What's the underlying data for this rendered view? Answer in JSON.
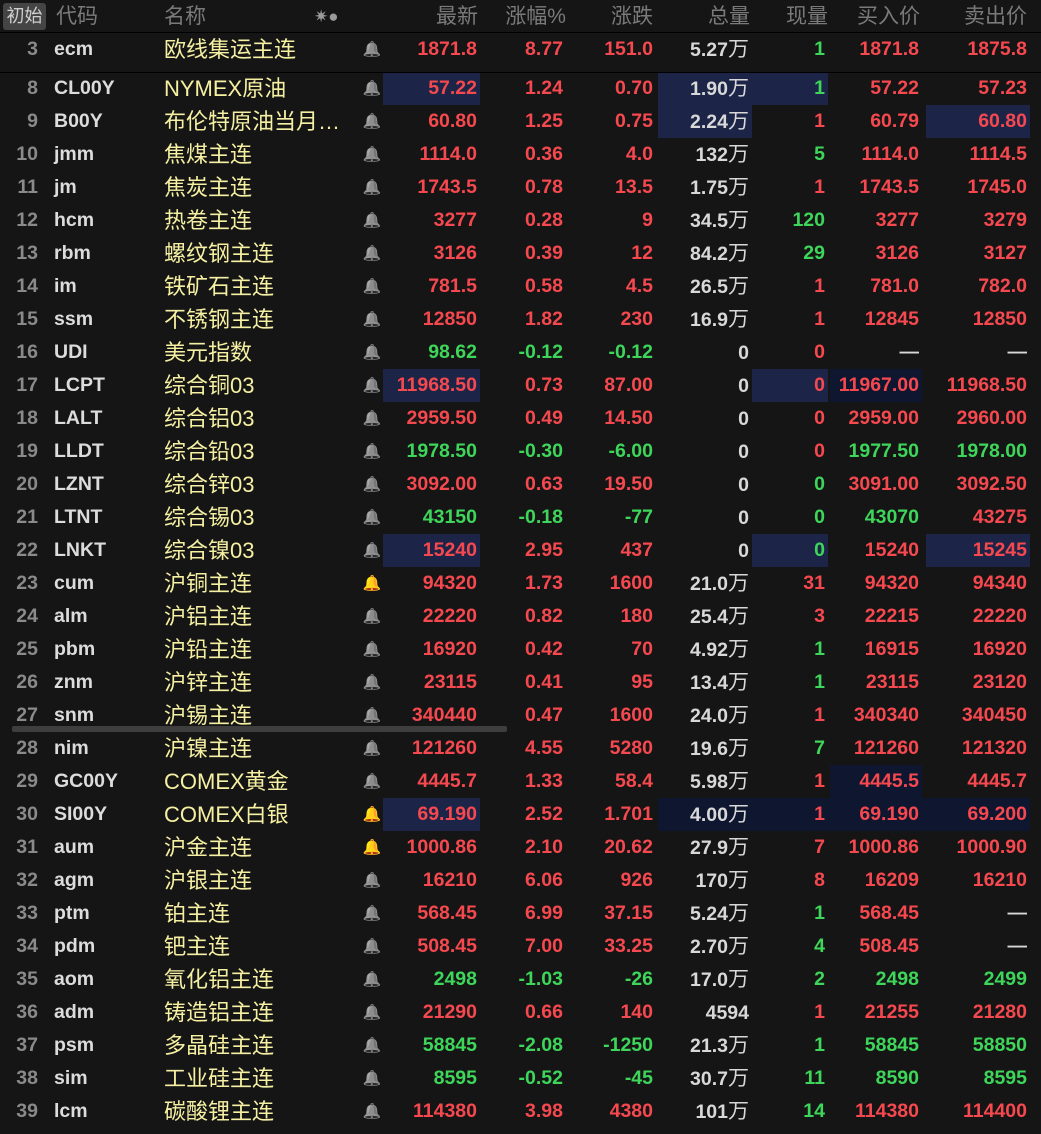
{
  "header": {
    "reset_button": "初始",
    "columns": {
      "code": "代码",
      "name": "名称",
      "icons": "✷●",
      "latest": "最新",
      "pct": "涨幅%",
      "change": "涨跌",
      "volume": "总量",
      "current_volume": "现量",
      "bid": "买入价",
      "ask": "卖出价"
    }
  },
  "colors": {
    "up": "#f5484f",
    "down": "#3ed65a",
    "neutral": "#d8d8d8",
    "name": "#f5f0a2",
    "highlight": "#1c2547",
    "highlight_dark": "#0f1630",
    "bell_gray": "#8a8a8a",
    "bell_orange": "#ff5a1f"
  },
  "rows": [
    {
      "n": "3",
      "code": "ecm",
      "name": "欧线集运主连",
      "bell": "gray",
      "latest": "1871.8",
      "pct": "8.77",
      "chg": "151.0",
      "vol": "5.27",
      "vol_unit": "万",
      "cur": "1",
      "bid": "1871.8",
      "ask": "1875.8",
      "colors": "rrrwgrr",
      "hl": []
    },
    {
      "n": "8",
      "code": "CL00Y",
      "name": "NYMEX原油",
      "bell": "gray",
      "latest": "57.22",
      "pct": "1.24",
      "chg": "0.70",
      "vol": "1.90",
      "vol_unit": "万",
      "cur": "1",
      "bid": "57.22",
      "ask": "57.23",
      "colors": "rrrwgrr",
      "hl": [
        "latest",
        "vol",
        "cur"
      ]
    },
    {
      "n": "9",
      "code": "B00Y",
      "name": "布伦特原油当月…",
      "bell": "gray",
      "latest": "60.80",
      "pct": "1.25",
      "chg": "0.75",
      "vol": "2.24",
      "vol_unit": "万",
      "cur": "1",
      "bid": "60.79",
      "ask": "60.80",
      "colors": "rrrwrrr",
      "hl": [
        "vol",
        "ask"
      ]
    },
    {
      "n": "10",
      "code": "jmm",
      "name": "焦煤主连",
      "bell": "gray",
      "latest": "1114.0",
      "pct": "0.36",
      "chg": "4.0",
      "vol": "132",
      "vol_unit": "万",
      "cur": "5",
      "bid": "1114.0",
      "ask": "1114.5",
      "colors": "rrrwgrr",
      "hl": []
    },
    {
      "n": "11",
      "code": "jm",
      "name": "焦炭主连",
      "bell": "gray",
      "latest": "1743.5",
      "pct": "0.78",
      "chg": "13.5",
      "vol": "1.75",
      "vol_unit": "万",
      "cur": "1",
      "bid": "1743.5",
      "ask": "1745.0",
      "colors": "rrrwrrr",
      "hl": []
    },
    {
      "n": "12",
      "code": "hcm",
      "name": "热卷主连",
      "bell": "gray",
      "latest": "3277",
      "pct": "0.28",
      "chg": "9",
      "vol": "34.5",
      "vol_unit": "万",
      "cur": "120",
      "bid": "3277",
      "ask": "3279",
      "colors": "rrrwgrr",
      "hl": []
    },
    {
      "n": "13",
      "code": "rbm",
      "name": "螺纹钢主连",
      "bell": "gray",
      "latest": "3126",
      "pct": "0.39",
      "chg": "12",
      "vol": "84.2",
      "vol_unit": "万",
      "cur": "29",
      "bid": "3126",
      "ask": "3127",
      "colors": "rrrwgrr",
      "hl": []
    },
    {
      "n": "14",
      "code": "im",
      "name": "铁矿石主连",
      "bell": "gray",
      "latest": "781.5",
      "pct": "0.58",
      "chg": "4.5",
      "vol": "26.5",
      "vol_unit": "万",
      "cur": "1",
      "bid": "781.0",
      "ask": "782.0",
      "colors": "rrrwrrr",
      "hl": []
    },
    {
      "n": "15",
      "code": "ssm",
      "name": "不锈钢主连",
      "bell": "gray",
      "latest": "12850",
      "pct": "1.82",
      "chg": "230",
      "vol": "16.9",
      "vol_unit": "万",
      "cur": "1",
      "bid": "12845",
      "ask": "12850",
      "colors": "rrrwrrr",
      "hl": []
    },
    {
      "n": "16",
      "code": "UDI",
      "name": "美元指数",
      "bell": "gray",
      "latest": "98.62",
      "pct": "-0.12",
      "chg": "-0.12",
      "vol": "0",
      "vol_unit": "",
      "cur": "0",
      "bid": "—",
      "ask": "—",
      "colors": "gggwrww",
      "hl": []
    },
    {
      "n": "17",
      "code": "LCPT",
      "name": "综合铜03",
      "bell": "gray",
      "latest": "11968.50",
      "pct": "0.73",
      "chg": "87.00",
      "vol": "0",
      "vol_unit": "",
      "cur": "0",
      "bid": "11967.00",
      "ask": "11968.50",
      "colors": "rrrwrrr",
      "hl": [
        "latest",
        "cur",
        "bid:dark"
      ]
    },
    {
      "n": "18",
      "code": "LALT",
      "name": "综合铝03",
      "bell": "gray",
      "latest": "2959.50",
      "pct": "0.49",
      "chg": "14.50",
      "vol": "0",
      "vol_unit": "",
      "cur": "0",
      "bid": "2959.00",
      "ask": "2960.00",
      "colors": "rrrwrrr",
      "hl": []
    },
    {
      "n": "19",
      "code": "LLDT",
      "name": "综合铅03",
      "bell": "gray",
      "latest": "1978.50",
      "pct": "-0.30",
      "chg": "-6.00",
      "vol": "0",
      "vol_unit": "",
      "cur": "0",
      "bid": "1977.50",
      "ask": "1978.00",
      "colors": "gggwrgg",
      "hl": []
    },
    {
      "n": "20",
      "code": "LZNT",
      "name": "综合锌03",
      "bell": "gray",
      "latest": "3092.00",
      "pct": "0.63",
      "chg": "19.50",
      "vol": "0",
      "vol_unit": "",
      "cur": "0",
      "bid": "3091.00",
      "ask": "3092.50",
      "colors": "rrrwgrr",
      "hl": []
    },
    {
      "n": "21",
      "code": "LTNT",
      "name": "综合锡03",
      "bell": "gray",
      "latest": "43150",
      "pct": "-0.18",
      "chg": "-77",
      "vol": "0",
      "vol_unit": "",
      "cur": "0",
      "bid": "43070",
      "ask": "43275",
      "colors": "gggwggr",
      "hl": []
    },
    {
      "n": "22",
      "code": "LNKT",
      "name": "综合镍03",
      "bell": "gray",
      "latest": "15240",
      "pct": "2.95",
      "chg": "437",
      "vol": "0",
      "vol_unit": "",
      "cur": "0",
      "bid": "15240",
      "ask": "15245",
      "colors": "rrrwgrr",
      "hl": [
        "latest",
        "cur",
        "ask"
      ]
    },
    {
      "n": "23",
      "code": "cum",
      "name": "沪铜主连",
      "bell": "orange",
      "latest": "94320",
      "pct": "1.73",
      "chg": "1600",
      "vol": "21.0",
      "vol_unit": "万",
      "cur": "31",
      "bid": "94320",
      "ask": "94340",
      "colors": "rrrwrrr",
      "hl": []
    },
    {
      "n": "24",
      "code": "alm",
      "name": "沪铝主连",
      "bell": "gray",
      "latest": "22220",
      "pct": "0.82",
      "chg": "180",
      "vol": "25.4",
      "vol_unit": "万",
      "cur": "3",
      "bid": "22215",
      "ask": "22220",
      "colors": "rrrwrrr",
      "hl": []
    },
    {
      "n": "25",
      "code": "pbm",
      "name": "沪铅主连",
      "bell": "gray",
      "latest": "16920",
      "pct": "0.42",
      "chg": "70",
      "vol": "4.92",
      "vol_unit": "万",
      "cur": "1",
      "bid": "16915",
      "ask": "16920",
      "colors": "rrrwgrr",
      "hl": []
    },
    {
      "n": "26",
      "code": "znm",
      "name": "沪锌主连",
      "bell": "gray",
      "latest": "23115",
      "pct": "0.41",
      "chg": "95",
      "vol": "13.4",
      "vol_unit": "万",
      "cur": "1",
      "bid": "23115",
      "ask": "23120",
      "colors": "rrrwgrr",
      "hl": []
    },
    {
      "n": "27",
      "code": "snm",
      "name": "沪锡主连",
      "bell": "gray",
      "latest": "340440",
      "pct": "0.47",
      "chg": "1600",
      "vol": "24.0",
      "vol_unit": "万",
      "cur": "1",
      "bid": "340340",
      "ask": "340450",
      "colors": "rrrwrrr",
      "hl": []
    },
    {
      "n": "28",
      "code": "nim",
      "name": "沪镍主连",
      "bell": "gray",
      "latest": "121260",
      "pct": "4.55",
      "chg": "5280",
      "vol": "19.6",
      "vol_unit": "万",
      "cur": "7",
      "bid": "121260",
      "ask": "121320",
      "colors": "rrrwgrr",
      "hl": []
    },
    {
      "n": "29",
      "code": "GC00Y",
      "name": "COMEX黄金",
      "bell": "gray",
      "latest": "4445.7",
      "pct": "1.33",
      "chg": "58.4",
      "vol": "5.98",
      "vol_unit": "万",
      "cur": "1",
      "bid": "4445.5",
      "ask": "4445.7",
      "colors": "rrrwrrr",
      "hl": [
        "bid:dark"
      ]
    },
    {
      "n": "30",
      "code": "SI00Y",
      "name": "COMEX白银",
      "bell": "orange",
      "latest": "69.190",
      "pct": "2.52",
      "chg": "1.701",
      "vol": "4.00",
      "vol_unit": "万",
      "cur": "1",
      "bid": "69.190",
      "ask": "69.200",
      "colors": "rrrwrrr",
      "hl": [
        "latest",
        "band:dark"
      ]
    },
    {
      "n": "31",
      "code": "aum",
      "name": "沪金主连",
      "bell": "orange",
      "latest": "1000.86",
      "pct": "2.10",
      "chg": "20.62",
      "vol": "27.9",
      "vol_unit": "万",
      "cur": "7",
      "bid": "1000.86",
      "ask": "1000.90",
      "colors": "rrrwrrr",
      "hl": []
    },
    {
      "n": "32",
      "code": "agm",
      "name": "沪银主连",
      "bell": "gray",
      "latest": "16210",
      "pct": "6.06",
      "chg": "926",
      "vol": "170",
      "vol_unit": "万",
      "cur": "8",
      "bid": "16209",
      "ask": "16210",
      "colors": "rrrwrrr",
      "hl": []
    },
    {
      "n": "33",
      "code": "ptm",
      "name": "铂主连",
      "bell": "gray",
      "latest": "568.45",
      "pct": "6.99",
      "chg": "37.15",
      "vol": "5.24",
      "vol_unit": "万",
      "cur": "1",
      "bid": "568.45",
      "ask": "—",
      "colors": "rrrwgrw",
      "hl": []
    },
    {
      "n": "34",
      "code": "pdm",
      "name": "钯主连",
      "bell": "gray",
      "latest": "508.45",
      "pct": "7.00",
      "chg": "33.25",
      "vol": "2.70",
      "vol_unit": "万",
      "cur": "4",
      "bid": "508.45",
      "ask": "—",
      "colors": "rrrwgrw",
      "hl": []
    },
    {
      "n": "35",
      "code": "aom",
      "name": "氧化铝主连",
      "bell": "gray",
      "latest": "2498",
      "pct": "-1.03",
      "chg": "-26",
      "vol": "17.0",
      "vol_unit": "万",
      "cur": "2",
      "bid": "2498",
      "ask": "2499",
      "colors": "gggwggg",
      "hl": []
    },
    {
      "n": "36",
      "code": "adm",
      "name": "铸造铝主连",
      "bell": "gray",
      "latest": "21290",
      "pct": "0.66",
      "chg": "140",
      "vol": "4594",
      "vol_unit": "",
      "cur": "1",
      "bid": "21255",
      "ask": "21280",
      "colors": "rrrwrrr",
      "hl": []
    },
    {
      "n": "37",
      "code": "psm",
      "name": "多晶硅主连",
      "bell": "gray",
      "latest": "58845",
      "pct": "-2.08",
      "chg": "-1250",
      "vol": "21.3",
      "vol_unit": "万",
      "cur": "1",
      "bid": "58845",
      "ask": "58850",
      "colors": "gggwggg",
      "hl": []
    },
    {
      "n": "38",
      "code": "sim",
      "name": "工业硅主连",
      "bell": "gray",
      "latest": "8595",
      "pct": "-0.52",
      "chg": "-45",
      "vol": "30.7",
      "vol_unit": "万",
      "cur": "11",
      "bid": "8590",
      "ask": "8595",
      "colors": "gggwggg",
      "hl": []
    },
    {
      "n": "39",
      "code": "lcm",
      "name": "碳酸锂主连",
      "bell": "gray",
      "latest": "114380",
      "pct": "3.98",
      "chg": "4380",
      "vol": "101",
      "vol_unit": "万",
      "cur": "14",
      "bid": "114380",
      "ask": "114400",
      "colors": "rrrwgrr",
      "hl": []
    }
  ]
}
